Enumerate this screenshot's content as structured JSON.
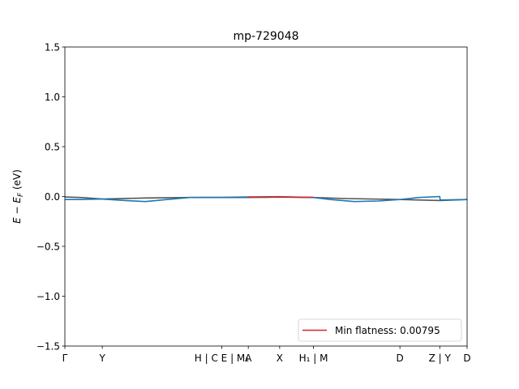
{
  "chart_data": {
    "type": "line",
    "title": "mp-729048",
    "ylabel": "E − E_F (eV)",
    "ylim": [
      -1.5,
      1.5
    ],
    "yticks": [
      -1.5,
      -1.0,
      -0.5,
      0.0,
      0.5,
      1.0,
      1.5
    ],
    "ytick_labels": [
      "−1.5",
      "−1.0",
      "−0.5",
      "0.0",
      "0.5",
      "1.0",
      "1.5"
    ],
    "xlim": [
      0,
      1
    ],
    "xticks": [
      {
        "pos": 0.0,
        "label": "Γ"
      },
      {
        "pos": 0.093,
        "label": "Y"
      },
      {
        "pos": 0.39,
        "label": "H | C E | M₁"
      },
      {
        "pos": 0.456,
        "label": "A"
      },
      {
        "pos": 0.534,
        "label": "X"
      },
      {
        "pos": 0.618,
        "label": "H₁ | M"
      },
      {
        "pos": 0.833,
        "label": "D"
      },
      {
        "pos": 0.932,
        "label": "Z | Y"
      },
      {
        "pos": 1.0,
        "label": "D"
      }
    ],
    "grid": false,
    "legend_location": "lower right",
    "series": [
      {
        "color": "#555555",
        "x": [
          0.0,
          0.04,
          0.093,
          0.2,
          0.31,
          0.39,
          0.456,
          0.534,
          0.618,
          0.7,
          0.833,
          0.932,
          1.0
        ],
        "y": [
          -0.005,
          -0.01,
          -0.025,
          -0.015,
          -0.01,
          -0.008,
          -0.005,
          -0.002,
          -0.01,
          -0.02,
          -0.03,
          -0.04,
          -0.03
        ]
      },
      {
        "color": "#1f77b4",
        "x": [
          0.0,
          0.04,
          0.093,
          0.15,
          0.2,
          0.24,
          0.31,
          0.39,
          0.456,
          0.534,
          0.618,
          0.66,
          0.72,
          0.78,
          0.833,
          0.88,
          0.932,
          0.933,
          1.0
        ],
        "y": [
          -0.03,
          -0.03,
          -0.025,
          -0.04,
          -0.05,
          -0.035,
          -0.01,
          -0.01,
          -0.01,
          -0.005,
          -0.01,
          -0.03,
          -0.05,
          -0.045,
          -0.03,
          -0.01,
          0.0,
          -0.035,
          -0.03
        ]
      },
      {
        "color": "#d62728",
        "name": "Min flatness: 0.00795",
        "x": [
          0.456,
          0.5,
          0.534,
          0.58,
          0.618
        ],
        "y": [
          -0.006,
          -0.008,
          -0.006,
          -0.007,
          -0.008
        ]
      }
    ],
    "legend": [
      {
        "label": "Min flatness: 0.00795",
        "color": "#d62728"
      }
    ]
  }
}
